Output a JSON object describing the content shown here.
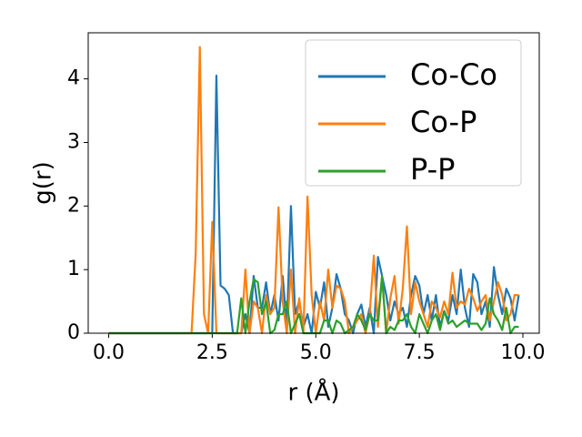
{
  "chart_data": {
    "type": "line",
    "xlabel": "r (Å)",
    "ylabel": "g(r)",
    "x": [
      0.0,
      0.1,
      0.2,
      0.3,
      0.4,
      0.5,
      0.6,
      0.7,
      0.8,
      0.9,
      1.0,
      1.1,
      1.2,
      1.3,
      1.4,
      1.5,
      1.6,
      1.7,
      1.8,
      1.9,
      2.0,
      2.1,
      2.2,
      2.3,
      2.4,
      2.5,
      2.6,
      2.7,
      2.8,
      2.9,
      3.0,
      3.1,
      3.2,
      3.3,
      3.4,
      3.5,
      3.6,
      3.7,
      3.8,
      3.9,
      4.0,
      4.1,
      4.2,
      4.3,
      4.4,
      4.5,
      4.6,
      4.7,
      4.8,
      4.9,
      5.0,
      5.1,
      5.2,
      5.3,
      5.4,
      5.5,
      5.6,
      5.7,
      5.8,
      5.9,
      6.0,
      6.1,
      6.2,
      6.3,
      6.4,
      6.5,
      6.6,
      6.7,
      6.8,
      6.9,
      7.0,
      7.1,
      7.2,
      7.3,
      7.4,
      7.5,
      7.6,
      7.7,
      7.8,
      7.9,
      8.0,
      8.1,
      8.2,
      8.3,
      8.4,
      8.5,
      8.6,
      8.7,
      8.8,
      8.9,
      9.0,
      9.1,
      9.2,
      9.3,
      9.4,
      9.5,
      9.6,
      9.7,
      9.8,
      9.9
    ],
    "series": [
      {
        "name": "Co-Co",
        "color": "#1f77b4",
        "values": [
          0,
          0,
          0,
          0,
          0,
          0,
          0,
          0,
          0,
          0,
          0,
          0,
          0,
          0,
          0,
          0,
          0,
          0,
          0,
          0,
          0,
          0,
          0,
          0,
          0,
          0,
          4.05,
          0.75,
          0.7,
          0.6,
          0,
          0,
          0,
          0.3,
          0,
          0.9,
          0.4,
          0.4,
          0.8,
          0.3,
          0.6,
          0.2,
          0.9,
          0.1,
          2.0,
          0.3,
          0.5,
          0.1,
          0.3,
          0,
          0.65,
          0.4,
          0.8,
          0.1,
          0.4,
          0.93,
          0.7,
          0.3,
          0.2,
          0,
          0.3,
          0.45,
          0.1,
          0.4,
          0,
          1.2,
          0.9,
          0.6,
          0.2,
          0.5,
          0.3,
          0.4,
          0.1,
          0.6,
          0.9,
          0.75,
          0.3,
          0.6,
          0.2,
          0.6,
          0.1,
          0.35,
          0.2,
          0.6,
          0.3,
          1.0,
          0.4,
          0.1,
          0.93,
          0.8,
          0.3,
          0.5,
          0.1,
          1.04,
          0.6,
          0.3,
          0.7,
          0.55,
          0.2,
          0.6
        ]
      },
      {
        "name": "Co-P",
        "color": "#ff7f0e",
        "values": [
          0,
          0,
          0,
          0,
          0,
          0,
          0,
          0,
          0,
          0,
          0,
          0,
          0,
          0,
          0,
          0,
          0,
          0,
          0,
          0,
          0,
          1.25,
          4.5,
          0.3,
          0,
          1.75,
          0,
          0,
          0,
          0,
          0,
          0,
          0,
          1.0,
          0,
          0.5,
          0.4,
          0,
          0.6,
          0.3,
          0.4,
          1.98,
          0.5,
          0,
          1.0,
          0,
          0.55,
          0,
          2.15,
          0.6,
          0,
          0.5,
          0.2,
          1.0,
          0.4,
          0.75,
          0.7,
          0.5,
          0,
          0.1,
          0.2,
          0.3,
          0,
          0.3,
          1.22,
          0.1,
          0.9,
          0,
          0.55,
          0.9,
          0.15,
          0.7,
          1.68,
          0.3,
          0.8,
          0.5,
          0.3,
          0.1,
          0.5,
          0.4,
          0.25,
          0.5,
          0.3,
          0.95,
          0.4,
          0.5,
          0.45,
          0.7,
          0.55,
          0.35,
          0.5,
          0.6,
          0.2,
          0.5,
          0.8,
          0.6,
          0.2,
          0.3,
          0.6,
          0.6
        ]
      },
      {
        "name": "P-P",
        "color": "#2ca02c",
        "values": [
          0,
          0,
          0,
          0,
          0,
          0,
          0,
          0,
          0,
          0,
          0,
          0,
          0,
          0,
          0,
          0,
          0,
          0,
          0,
          0,
          0,
          0,
          0,
          0,
          0,
          0,
          0,
          0,
          0,
          0,
          0,
          0,
          0.55,
          0,
          0.5,
          0.85,
          0.8,
          0.3,
          0.5,
          0,
          0.05,
          0.3,
          0.3,
          0.5,
          0,
          0.15,
          0.3,
          0,
          0,
          0,
          0,
          0,
          0.2,
          0.2,
          0,
          0.2,
          0.15,
          0,
          0.05,
          0.1,
          0.3,
          0.2,
          0.05,
          0.3,
          0.2,
          0.2,
          0.9,
          0,
          0.1,
          0.05,
          0.2,
          0.2,
          0.3,
          0.1,
          0,
          0.3,
          0.15,
          0,
          0.2,
          0.3,
          0.05,
          0.35,
          0.15,
          0.2,
          0.1,
          0.15,
          0.2,
          0.15,
          0.15,
          0.15,
          0.05,
          0.15,
          0.55,
          0.3,
          0.2,
          0.05,
          0.4,
          0,
          0.1,
          0.1
        ]
      }
    ],
    "xlim": [
      -0.495,
      10.395
    ],
    "xticks": [
      {
        "value": 0,
        "label": "0.0"
      },
      2.5,
      {
        "value": 5,
        "label": "5.0"
      },
      7.5,
      {
        "value": 10,
        "label": "10.0"
      }
    ],
    "ylim": [
      0,
      4.725
    ],
    "yticks": [
      0,
      1,
      2,
      3,
      4
    ],
    "legend": "upper right"
  }
}
